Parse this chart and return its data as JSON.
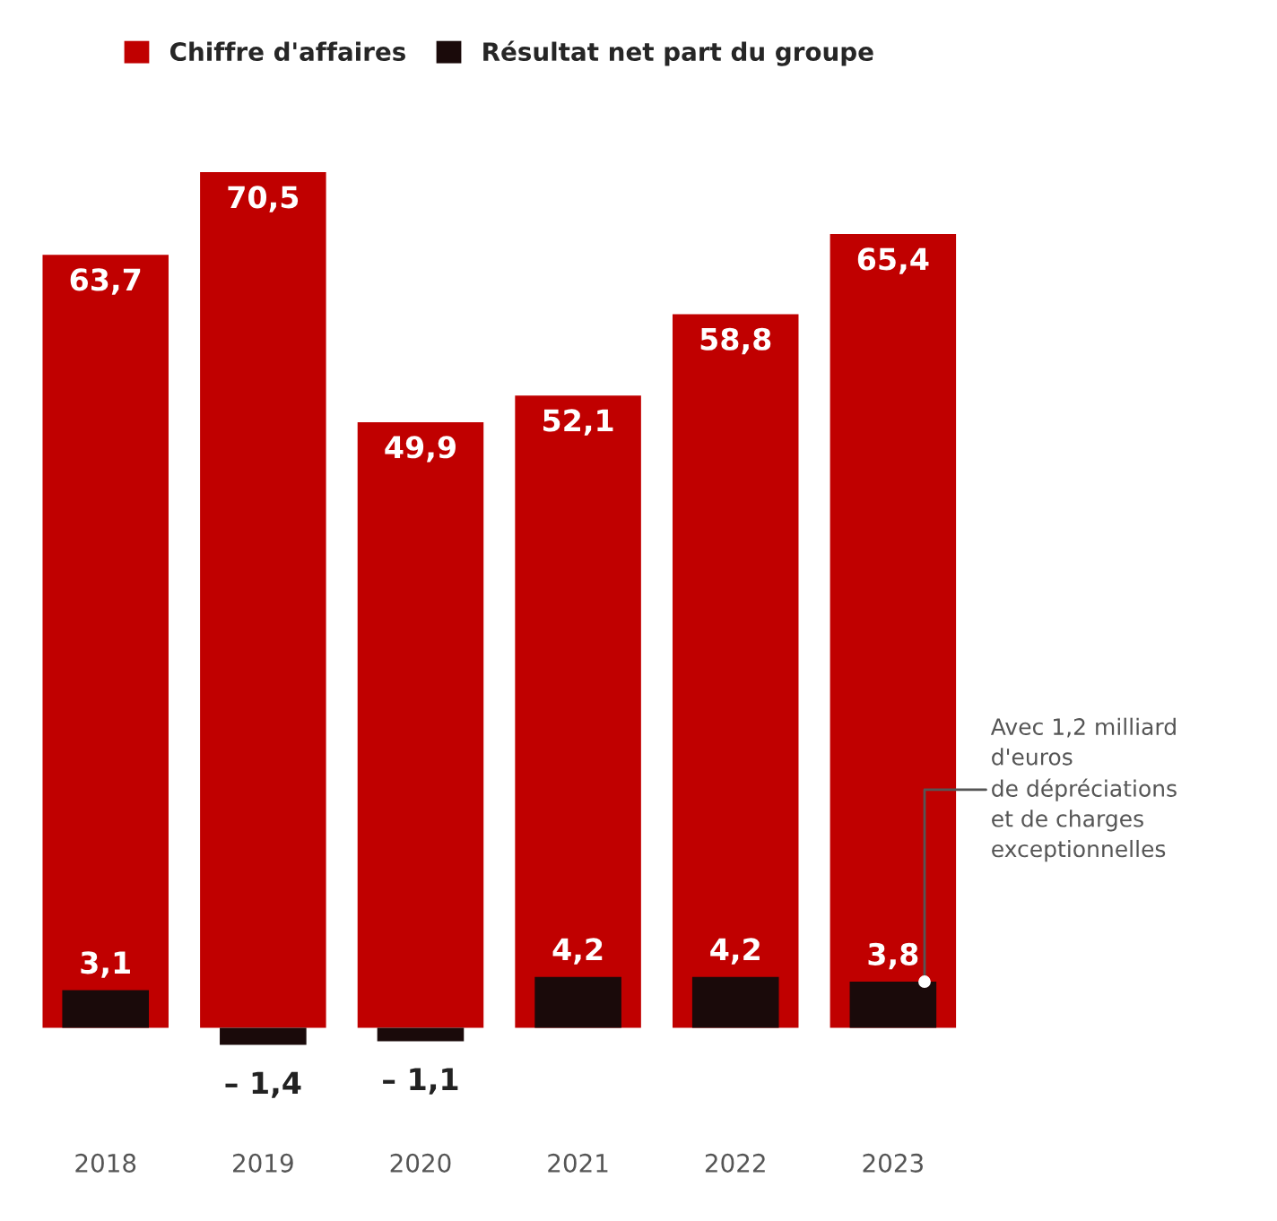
{
  "chart_data": {
    "type": "bar",
    "categories": [
      "2018",
      "2019",
      "2020",
      "2021",
      "2022",
      "2023"
    ],
    "series": [
      {
        "name": "Chiffre d'affaires",
        "color": "#c00000",
        "values": [
          63.7,
          70.5,
          49.9,
          52.1,
          58.8,
          65.4
        ],
        "value_labels": [
          "63,7",
          "70,5",
          "49,9",
          "52,1",
          "58,8",
          "65,4"
        ]
      },
      {
        "name": "Résultat net part du groupe",
        "color": "#1a0a0a",
        "values": [
          3.1,
          -1.4,
          -1.1,
          4.2,
          4.2,
          3.8
        ],
        "value_labels": [
          "3,1",
          "– 1,4",
          "– 1,1",
          "4,2",
          "4,2",
          "3,8"
        ]
      }
    ],
    "legend": "top",
    "annotations": [
      "Avec 1,2 milliard\nd'euros\nde dépréciations\net de charges\nexceptionnelles"
    ]
  }
}
